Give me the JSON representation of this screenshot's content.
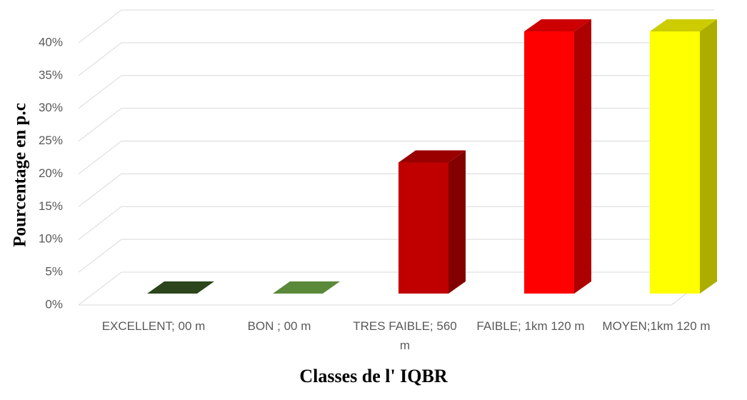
{
  "chart_data": {
    "type": "bar3d",
    "x_label": "Classes de l' IQBR",
    "y_label": "Pourcentage en p.c",
    "categories": [
      "EXCELLENT; 00 m",
      "BON ; 00 m",
      "TRES FAIBLE; 560 m",
      "FAIBLE; 1km 120 m",
      "MOYEN;1km 120 m"
    ],
    "values": [
      0,
      0,
      20,
      40,
      40
    ],
    "colors": [
      "#375623",
      "#70ad47",
      "#c00000",
      "#ff0000",
      "#ffff00"
    ],
    "ylim": [
      0,
      40
    ],
    "yticks": [
      {
        "value": 0,
        "label": "0%"
      },
      {
        "value": 5,
        "label": "5%"
      },
      {
        "value": 10,
        "label": "10%"
      },
      {
        "value": 15,
        "label": "15%"
      },
      {
        "value": 20,
        "label": "20%"
      },
      {
        "value": 25,
        "label": "25%"
      },
      {
        "value": 30,
        "label": "30%"
      },
      {
        "value": 35,
        "label": "35%"
      },
      {
        "value": 40,
        "label": "40%"
      }
    ],
    "grid": true
  }
}
